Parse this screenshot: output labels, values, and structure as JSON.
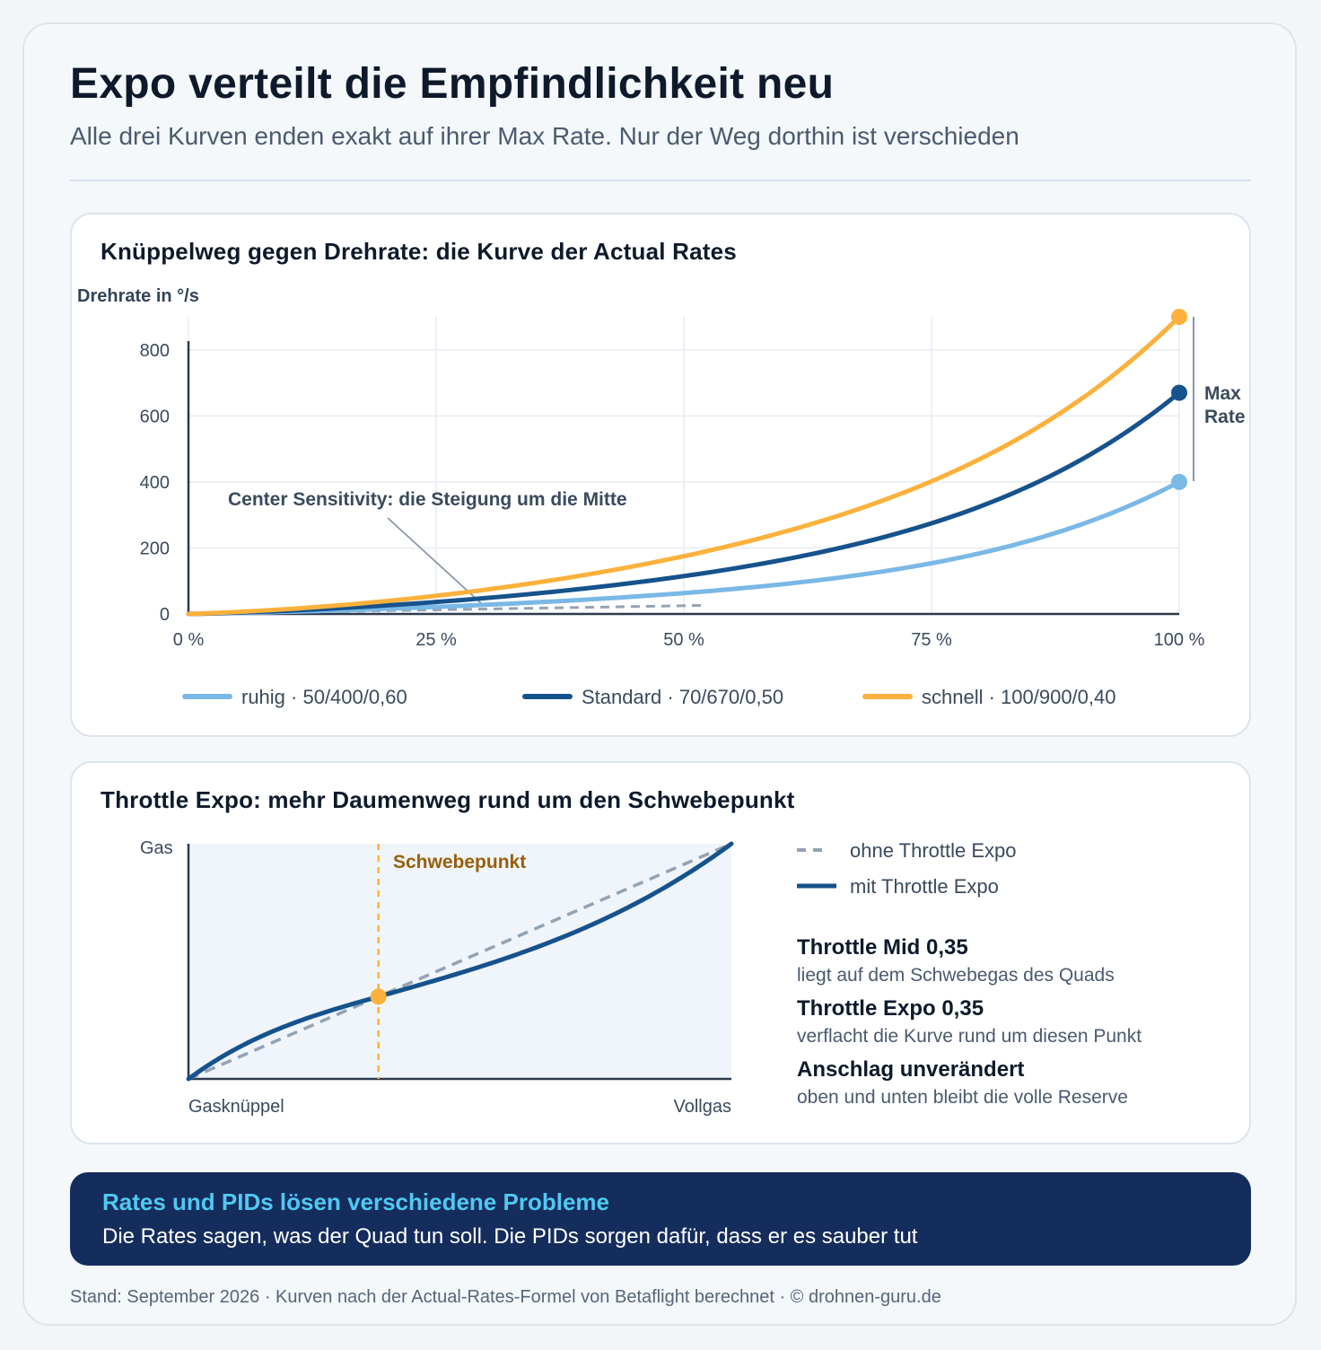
{
  "header": {
    "title": "Expo verteilt die Empfindlichkeit neu",
    "subtitle": "Alle drei Kurven enden exakt auf ihrer Max Rate. Nur der Weg dorthin ist verschieden"
  },
  "chart_data": [
    {
      "type": "line",
      "title": "Knüppelweg gegen Drehrate: die Kurve der Actual Rates",
      "ylabel": "Drehrate in °/s",
      "xlabel": "",
      "xlim": [
        0,
        100
      ],
      "ylim": [
        0,
        900
      ],
      "x_ticks": [
        0,
        25,
        50,
        75,
        100
      ],
      "x_tick_labels": [
        "0 %",
        "25 %",
        "50 %",
        "75 %",
        "100 %"
      ],
      "y_ticks": [
        0,
        200,
        400,
        600,
        800
      ],
      "y_tick_labels": [
        "0",
        "200",
        "400",
        "600",
        "800"
      ],
      "grid": true,
      "legend_position": "bottom",
      "series": [
        {
          "name": "ruhig · 50/400/0,60",
          "color": "#7ab8e6",
          "center": 50,
          "max": 400,
          "expo": 0.6
        },
        {
          "name": "Standard · 70/670/0,50",
          "color": "#16528c",
          "center": 70,
          "max": 670,
          "expo": 0.5
        },
        {
          "name": "schnell · 100/900/0,40",
          "color": "#fbb13c",
          "center": 100,
          "max": 900,
          "expo": 0.4
        }
      ],
      "annotations": {
        "center_sensitivity": "Center Sensitivity: die Steigung um die Mitte",
        "max_rate": [
          "Max",
          "Rate"
        ]
      }
    },
    {
      "type": "line",
      "title": "Throttle Expo: mehr Daumenweg rund um den Schwebepunkt",
      "ylabel": "Gas",
      "x_start_label": "Gasknüppel",
      "x_end_label": "Vollgas",
      "hover_label": "Schwebepunkt",
      "throttle_mid": 0.35,
      "throttle_expo": 0.35,
      "series": [
        {
          "name": "ohne Throttle Expo",
          "color": "#94a3b3",
          "style": "dashed"
        },
        {
          "name": "mit Throttle Expo",
          "color": "#16528c",
          "style": "solid"
        }
      ]
    }
  ],
  "info": [
    {
      "title": "Throttle Mid 0,35",
      "text": "liegt auf dem Schwebegas des Quads"
    },
    {
      "title": "Throttle Expo 0,35",
      "text": "verflacht die Kurve rund um diesen Punkt"
    },
    {
      "title": "Anschlag unverändert",
      "text": "oben und unten bleibt die volle Reserve"
    }
  ],
  "banner": {
    "title": "Rates und PIDs lösen verschiedene Probleme",
    "text": "Die Rates sagen, was der Quad tun soll. Die PIDs sorgen dafür, dass er es sauber tut"
  },
  "footer": "Stand: September 2026 · Kurven nach der Actual-Rates-Formel von Betaflight berechnet · © drohnen-guru.de",
  "colors": {
    "accent_orange": "#fbb13c",
    "accent_blue": "#16528c",
    "light_blue": "#7ab8e6",
    "banner_bg": "#152d5c",
    "banner_title": "#4fc9f2"
  }
}
